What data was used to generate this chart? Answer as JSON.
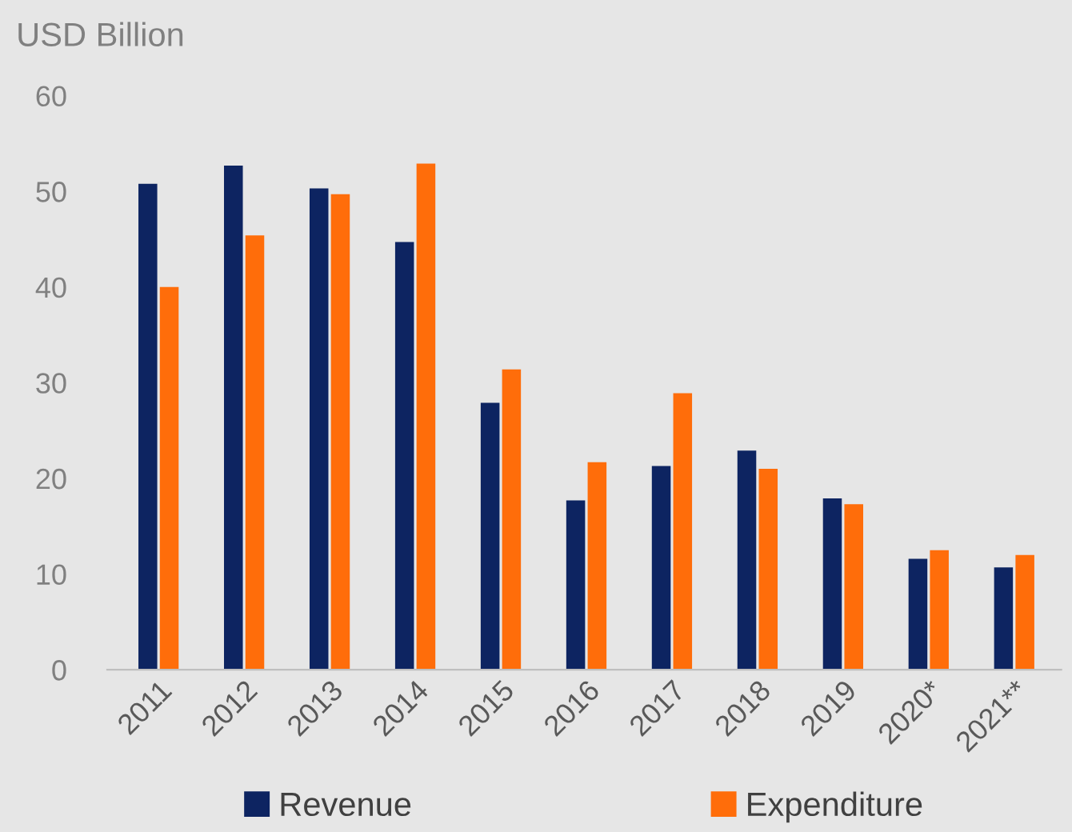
{
  "chart_data": {
    "type": "bar",
    "ylabel": "USD Billion",
    "categories": [
      "2011",
      "2012",
      "2013",
      "2014",
      "2015",
      "2016",
      "2017",
      "2018",
      "2019",
      "2020*",
      "2021**"
    ],
    "series": [
      {
        "name": "Revenue",
        "color": "#0d2461",
        "values": [
          50.8,
          52.7,
          50.3,
          44.7,
          27.9,
          17.7,
          21.3,
          22.9,
          17.9,
          11.6,
          10.7
        ]
      },
      {
        "name": "Expenditure",
        "color": "#ff6d0a",
        "values": [
          40.0,
          45.4,
          49.7,
          52.9,
          31.4,
          21.7,
          28.9,
          21.0,
          17.3,
          12.5,
          12.0
        ]
      }
    ],
    "ylim": [
      0,
      60
    ],
    "yticks": [
      0,
      10,
      20,
      30,
      40,
      50,
      60
    ],
    "grid": false,
    "legend": "bottom"
  }
}
